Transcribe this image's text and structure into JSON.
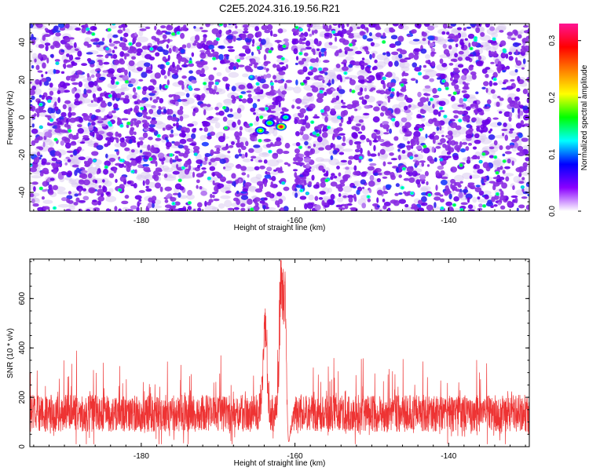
{
  "title": "C2E5.2024.316.19.56.R21",
  "chart_data": [
    {
      "type": "heatmap",
      "title": "C2E5.2024.316.19.56.R21",
      "xlabel": "Height of straight line (km)",
      "ylabel": "Frequency (Hz)",
      "xlim": [
        -194.5,
        -129.5
      ],
      "ylim": [
        -50,
        50
      ],
      "xticks": [
        -180,
        -160,
        -140
      ],
      "xtick_labels": [
        "-180",
        "-160",
        "-140"
      ],
      "yticks": [
        -40,
        -20,
        0,
        20,
        40
      ],
      "ytick_labels": [
        "-40",
        "-20",
        "0",
        "20",
        "40"
      ],
      "colorbar": {
        "label": "Normalized spectral amplitude",
        "range": [
          0,
          0.33
        ],
        "ticks": [
          0,
          0.1,
          0.2,
          0.3
        ],
        "tick_labels": [
          "0.0",
          "0.1",
          "0.2",
          "0.3"
        ],
        "colormap": [
          "#ffffff",
          "#8a00ff",
          "#0000ff",
          "#00ffff",
          "#00ff00",
          "#ffff00",
          "#ff8000",
          "#ff0000",
          "#ff1493"
        ]
      },
      "features": {
        "low_amplitude_band_x": -160.5,
        "peaks": [
          {
            "x": -161.8,
            "y": -5,
            "value": 0.3
          },
          {
            "x": -164.5,
            "y": -7,
            "value": 0.2
          },
          {
            "x": -163.3,
            "y": -3,
            "value": 0.18
          },
          {
            "x": -161.2,
            "y": 0,
            "value": 0.15
          }
        ]
      },
      "grid": false
    },
    {
      "type": "line",
      "xlabel": "Height of straight line (km)",
      "ylabel": "SNR (10 * v/v)",
      "xlim": [
        -194.5,
        -129.5
      ],
      "ylim": [
        0,
        760
      ],
      "xticks": [
        -180,
        -160,
        -140
      ],
      "xtick_labels": [
        "-180",
        "-160",
        "-140"
      ],
      "yticks": [
        0,
        200,
        400,
        600
      ],
      "ytick_labels": [
        "0",
        "200",
        "400",
        "600"
      ],
      "color": "#ee3333",
      "baseline": 135,
      "noise_range": [
        20,
        340
      ],
      "peaks": [
        {
          "x": -163.9,
          "y": 570
        },
        {
          "x": -161.8,
          "y": 750
        },
        {
          "x": -161.2,
          "y": 730
        }
      ],
      "dip": {
        "x": -160.8,
        "y": 20
      },
      "grid": false
    }
  ]
}
